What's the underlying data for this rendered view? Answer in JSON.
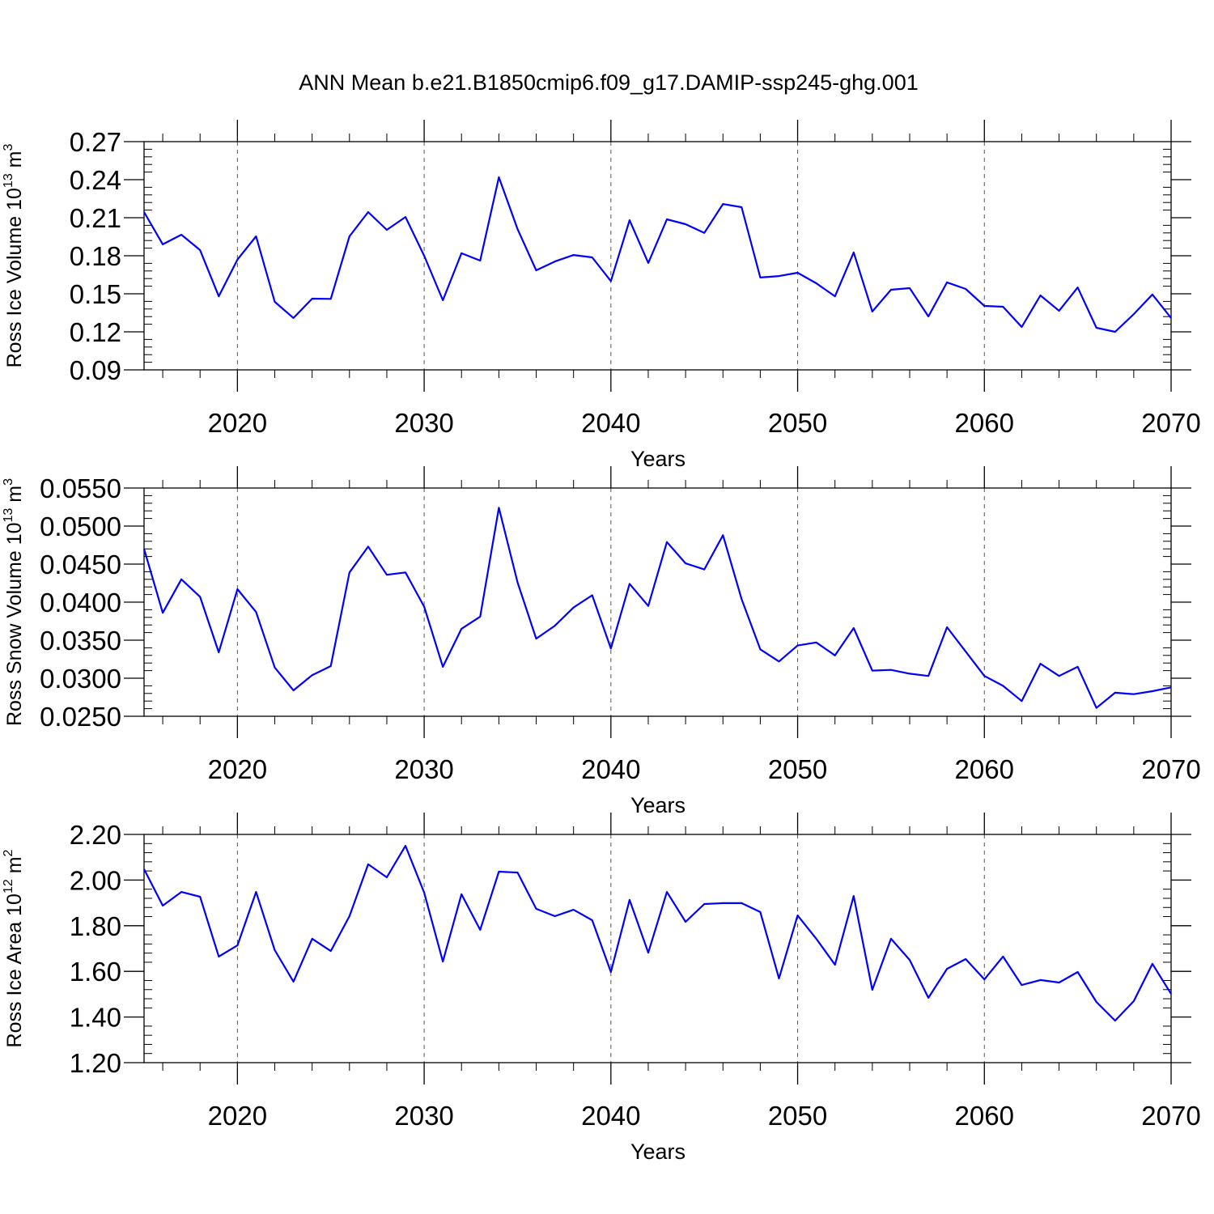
{
  "title": "ANN Mean b.e21.B1850cmip6.f09_g17.DAMIP-ssp245-ghg.001",
  "line_color": "#0000ff",
  "chart_data": [
    {
      "type": "line",
      "title": "ANN Mean b.e21.B1850cmip6.f09_g17.DAMIP-ssp245-ghg.001",
      "xlabel": "Years",
      "ylabel": {
        "text": "Ross Ice Volume 10",
        "exp1": "13",
        "unit": " m",
        "exp2": "3"
      },
      "xlim": [
        2015,
        2070
      ],
      "ylim": [
        0.09,
        0.27
      ],
      "xticks": [
        "2020",
        "2030",
        "2040",
        "2050",
        "2060",
        "2070"
      ],
      "yticks": [
        "0.09",
        "0.12",
        "0.15",
        "0.18",
        "0.21",
        "0.24",
        "0.27"
      ],
      "x_start": 2015,
      "values": [
        0.2145,
        0.189,
        0.1966,
        0.1845,
        0.148,
        0.177,
        0.1953,
        0.1436,
        0.1309,
        0.1462,
        0.146,
        0.1953,
        0.2145,
        0.2004,
        0.2106,
        0.18,
        0.1449,
        0.182,
        0.1762,
        0.2419,
        0.201,
        0.1685,
        0.1755,
        0.1806,
        0.1787,
        0.16,
        0.208,
        0.1743,
        0.2087,
        0.2049,
        0.198,
        0.2208,
        0.2183,
        0.1628,
        0.164,
        0.1666,
        0.1583,
        0.148,
        0.1826,
        0.136,
        0.1532,
        0.1545,
        0.1321,
        0.159,
        0.1538,
        0.1404,
        0.1398,
        0.1238,
        0.1487,
        0.1366,
        0.155,
        0.1232,
        0.12,
        0.134,
        0.1494,
        0.1309
      ],
      "grid": "dashed vertical at decades"
    },
    {
      "type": "line",
      "xlabel": "Years",
      "ylabel": {
        "text": "Ross Snow Volume 10",
        "exp1": "13",
        "unit": " m",
        "exp2": "3"
      },
      "xlim": [
        2015,
        2070
      ],
      "ylim": [
        0.025,
        0.055
      ],
      "xticks": [
        "2020",
        "2030",
        "2040",
        "2050",
        "2060",
        "2070"
      ],
      "yticks": [
        "0.0250",
        "0.0300",
        "0.0350",
        "0.0400",
        "0.0450",
        "0.0500",
        "0.0550"
      ],
      "x_start": 2015,
      "values": [
        0.047,
        0.0386,
        0.043,
        0.0407,
        0.0334,
        0.0417,
        0.0387,
        0.0314,
        0.0284,
        0.0304,
        0.0316,
        0.0439,
        0.0473,
        0.0436,
        0.0439,
        0.0394,
        0.0315,
        0.0365,
        0.0381,
        0.0524,
        0.0426,
        0.0352,
        0.0369,
        0.0393,
        0.0409,
        0.0339,
        0.0424,
        0.0395,
        0.0479,
        0.0451,
        0.0443,
        0.0488,
        0.0404,
        0.0338,
        0.0322,
        0.0343,
        0.0347,
        0.033,
        0.0366,
        0.031,
        0.0311,
        0.0306,
        0.0303,
        0.0367,
        0.0335,
        0.0303,
        0.029,
        0.027,
        0.0319,
        0.0303,
        0.0315,
        0.0261,
        0.0281,
        0.0279,
        0.0283,
        0.0288
      ],
      "grid": "dashed vertical at decades"
    },
    {
      "type": "line",
      "xlabel": "Years",
      "ylabel": {
        "text": "Ross Ice Area 10",
        "exp1": "12",
        "unit": " m",
        "exp2": "2"
      },
      "xlim": [
        2015,
        2070
      ],
      "ylim": [
        1.2,
        2.2
      ],
      "xticks": [
        "2020",
        "2030",
        "2040",
        "2050",
        "2060",
        "2070"
      ],
      "yticks": [
        "1.20",
        "1.40",
        "1.60",
        "1.80",
        "2.00",
        "2.20"
      ],
      "x_start": 2015,
      "values": [
        2.048,
        1.888,
        1.948,
        1.927,
        1.665,
        1.714,
        1.948,
        1.693,
        1.555,
        1.743,
        1.689,
        1.842,
        2.069,
        2.012,
        2.15,
        1.945,
        1.643,
        1.938,
        1.782,
        2.037,
        2.033,
        1.874,
        1.842,
        1.87,
        1.824,
        1.597,
        1.913,
        1.682,
        1.948,
        1.817,
        1.895,
        1.899,
        1.899,
        1.86,
        1.569,
        1.845,
        1.743,
        1.629,
        1.93,
        1.519,
        1.743,
        1.65,
        1.484,
        1.611,
        1.654,
        1.565,
        1.665,
        1.54,
        1.562,
        1.551,
        1.597,
        1.466,
        1.384,
        1.47,
        1.633,
        1.501
      ],
      "grid": "dashed vertical at decades"
    }
  ]
}
